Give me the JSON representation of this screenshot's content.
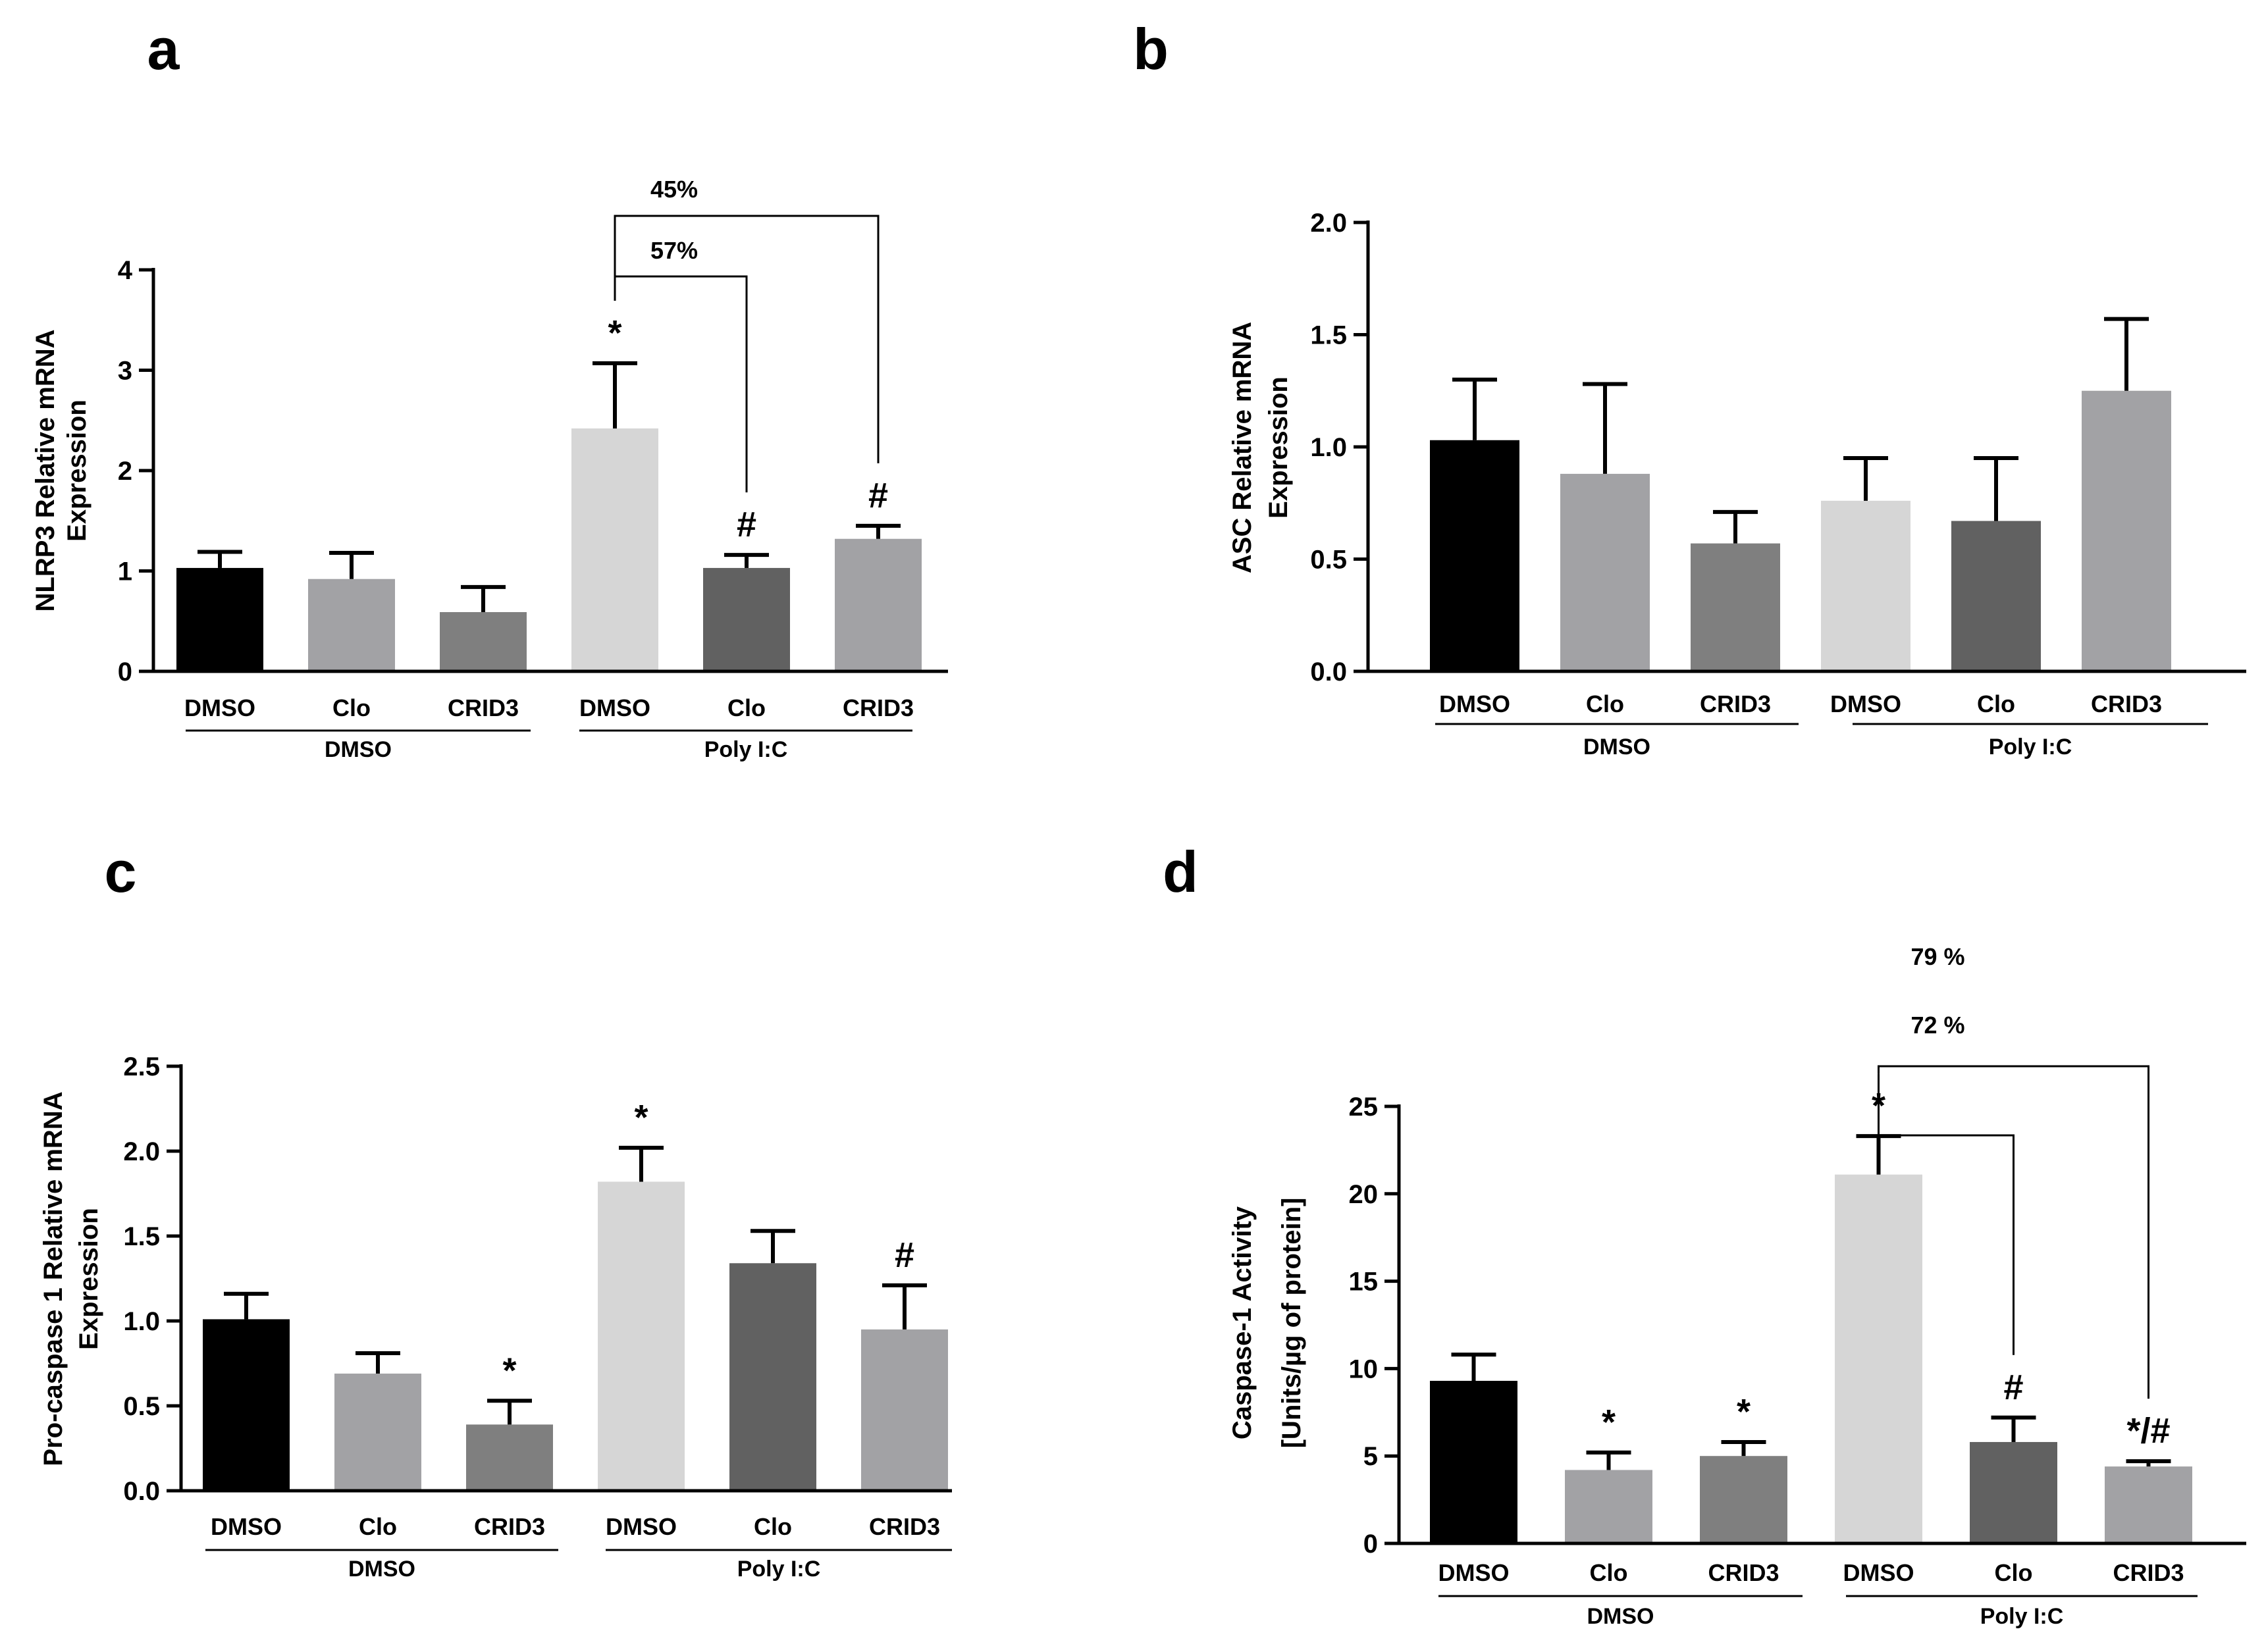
{
  "chart_data": [
    {
      "type": "bar",
      "panel": "a",
      "ylabel_lines": [
        "NLRP3 Relative mRNA",
        "Expression"
      ],
      "ylim": [
        0,
        4
      ],
      "yticks": [
        "0",
        "1",
        "2",
        "3",
        "4"
      ],
      "categories": [
        "DMSO",
        "Clo",
        "CRID3",
        "DMSO",
        "Clo",
        "CRID3"
      ],
      "groups": [
        "DMSO",
        "Poly I:C"
      ],
      "values": [
        1.03,
        0.92,
        0.59,
        2.42,
        1.03,
        1.32
      ],
      "errors": [
        0.16,
        0.26,
        0.25,
        0.65,
        0.13,
        0.13
      ],
      "colors": [
        "#000000",
        "#a2a2a5",
        "#7f7f7f",
        "#d6d6d6",
        "#616161",
        "#a2a2a5"
      ],
      "markers": [
        "",
        "",
        "",
        "*",
        "#",
        "#"
      ],
      "brackets": [
        {
          "label": "57%",
          "from": 3,
          "to": 4
        },
        {
          "label": "45%",
          "from": 3,
          "to": 5
        }
      ]
    },
    {
      "type": "bar",
      "panel": "b",
      "ylabel_lines": [
        "ASC Relative mRNA",
        "Expression"
      ],
      "ylim": [
        0,
        2
      ],
      "yticks": [
        "0.0",
        "0.5",
        "1.0",
        "1.5",
        "2.0"
      ],
      "categories": [
        "DMSO",
        "Clo",
        "CRID3",
        "DMSO",
        "Clo",
        "CRID3"
      ],
      "groups": [
        "DMSO",
        "Poly I:C"
      ],
      "values": [
        1.03,
        0.88,
        0.57,
        0.76,
        0.67,
        1.25
      ],
      "errors": [
        0.27,
        0.4,
        0.14,
        0.19,
        0.28,
        0.32
      ],
      "colors": [
        "#000000",
        "#a2a2a5",
        "#7f7f7f",
        "#d6d6d6",
        "#616161",
        "#a2a2a5"
      ],
      "markers": [
        "",
        "",
        "",
        "",
        "",
        ""
      ],
      "brackets": []
    },
    {
      "type": "bar",
      "panel": "c",
      "ylabel_lines": [
        "Pro-caspase 1 Relative mRNA",
        "Expression"
      ],
      "ylim": [
        0,
        2.5
      ],
      "yticks": [
        "0.0",
        "0.5",
        "1.0",
        "1.5",
        "2.0",
        "2.5"
      ],
      "categories": [
        "DMSO",
        "Clo",
        "CRID3",
        "DMSO",
        "Clo",
        "CRID3"
      ],
      "groups": [
        "DMSO",
        "Poly I:C"
      ],
      "values": [
        1.01,
        0.69,
        0.39,
        1.82,
        1.34,
        0.95
      ],
      "errors": [
        0.15,
        0.12,
        0.14,
        0.2,
        0.19,
        0.26
      ],
      "colors": [
        "#000000",
        "#a2a2a5",
        "#7f7f7f",
        "#d6d6d6",
        "#616161",
        "#a2a2a5"
      ],
      "markers": [
        "",
        "",
        "*",
        "*",
        "",
        "#"
      ],
      "brackets": []
    },
    {
      "type": "bar",
      "panel": "d",
      "ylabel_lines": [
        "Caspase-1 Activity",
        "[Units/µg of protein]"
      ],
      "ylim": [
        0,
        25
      ],
      "yticks": [
        "0",
        "5",
        "10",
        "15",
        "20",
        "25"
      ],
      "categories": [
        "DMSO",
        "Clo",
        "CRID3",
        "DMSO",
        "Clo",
        "CRID3"
      ],
      "groups": [
        "DMSO",
        "Poly I:C"
      ],
      "values": [
        9.3,
        4.2,
        5.0,
        21.1,
        5.8,
        4.4
      ],
      "errors": [
        1.5,
        1.0,
        0.8,
        2.2,
        1.4,
        0.3
      ],
      "colors": [
        "#000000",
        "#a2a2a5",
        "#7f7f7f",
        "#d6d6d6",
        "#616161",
        "#a2a2a5"
      ],
      "markers": [
        "",
        "*",
        "*",
        "*",
        "#",
        "*/#"
      ],
      "brackets": [
        {
          "label": "72 %",
          "from": 3,
          "to": 4
        },
        {
          "label": "79 %",
          "from": 3,
          "to": 5
        }
      ]
    }
  ]
}
